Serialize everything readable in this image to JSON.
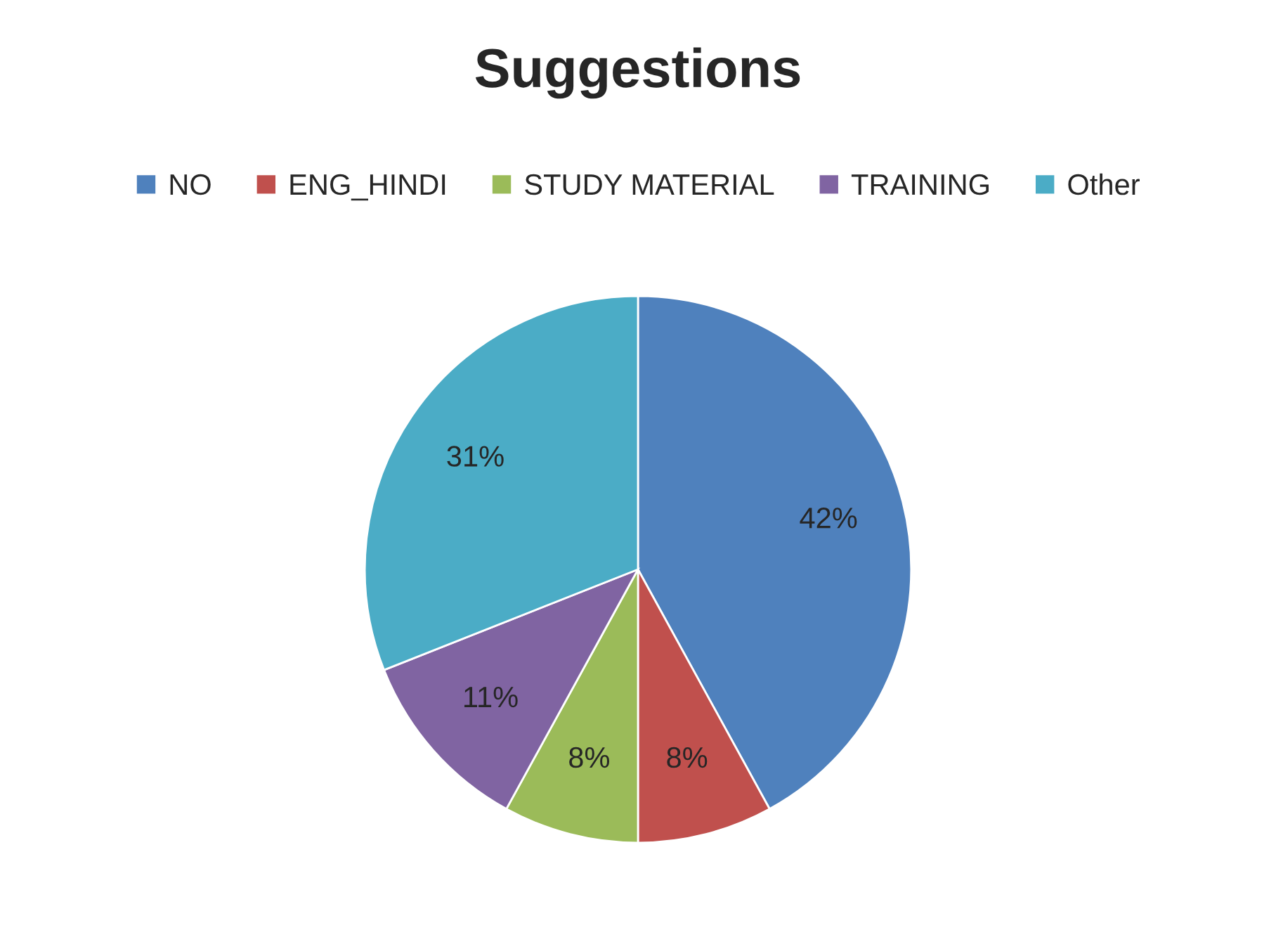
{
  "chart_data": {
    "type": "pie",
    "title": "Suggestions",
    "categories": [
      "NO",
      "ENG_HINDI",
      "STUDY MATERIAL",
      "TRAINING",
      "Other"
    ],
    "values": [
      42,
      8,
      8,
      11,
      31
    ],
    "colors": [
      "#4f81bd",
      "#c0504d",
      "#9bbb59",
      "#8064a2",
      "#4bacc6"
    ],
    "value_labels": [
      "42%",
      "8%",
      "8%",
      "11%",
      "31%"
    ],
    "legend": "top"
  }
}
